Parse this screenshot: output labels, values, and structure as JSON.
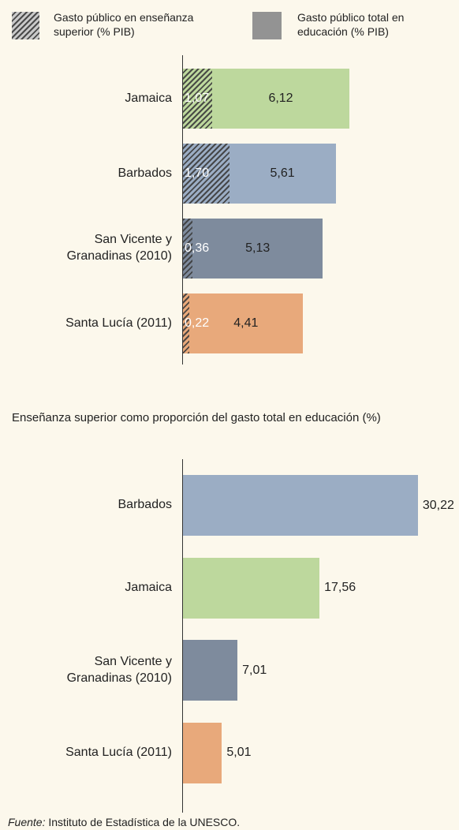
{
  "chart_data": [
    {
      "type": "overlay_bar",
      "categories": [
        "Jamaica",
        "Barbados",
        "San Vicente y Granadinas (2010)",
        "Santa Lucía (2011)"
      ],
      "colors": [
        "#bdd89d",
        "#9badc4",
        "#7e8b9d",
        "#e8a97b"
      ],
      "series": [
        {
          "name": "Gasto público en enseñanza superior (% PIB)",
          "color": "#555555",
          "pattern": "hatch",
          "values": [
            1.07,
            1.7,
            0.36,
            0.22
          ],
          "value_labels": [
            "1,07",
            "1,70",
            "0,36",
            "0,22"
          ]
        },
        {
          "name": "Gasto público total en educación (% PIB)",
          "color": "#939393",
          "values": [
            6.12,
            5.61,
            5.13,
            4.41
          ],
          "value_labels": [
            "6,12",
            "5,61",
            "5,13",
            "4,41"
          ]
        }
      ],
      "xlim": [
        0,
        10
      ]
    },
    {
      "type": "bar",
      "title": "Enseñanza superior como proporción del gasto total en educación (%)",
      "categories": [
        "Barbados",
        "Jamaica",
        "San Vicente y Granadinas (2010)",
        "Santa Lucía (2011)"
      ],
      "colors": [
        "#9badc4",
        "#bdd89d",
        "#7e8b9d",
        "#e8a97b"
      ],
      "values": [
        30.22,
        17.56,
        7.01,
        5.01
      ],
      "value_labels": [
        "30,22",
        "17,56",
        "7,01",
        "5,01"
      ],
      "xlim": [
        0,
        35
      ]
    }
  ],
  "source": {
    "label": "Fuente:",
    "text": "Instituto de Estadística de la UNESCO."
  }
}
